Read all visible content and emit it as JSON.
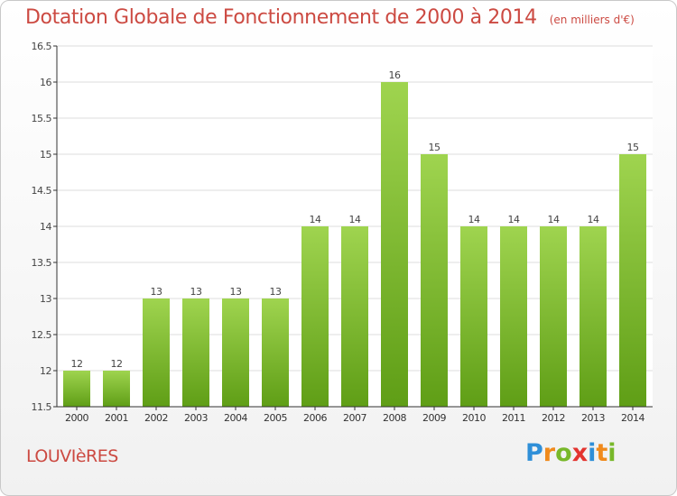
{
  "title": {
    "main": "Dotation Globale de Fonctionnement de 2000 à 2014",
    "unit": "(en milliers d'€)"
  },
  "commune": "LOUVIèRES",
  "logo": {
    "letters": [
      "P",
      "r",
      "o",
      "x",
      "i",
      "t",
      "i"
    ],
    "colors": [
      "#2f8fd8",
      "#f08a1c",
      "#78b82a",
      "#e3342f",
      "#2f8fd8",
      "#f08a1c",
      "#78b82a"
    ]
  },
  "colors": {
    "title": "#cc4a42",
    "bar_top": "#9fd44f",
    "bar_bottom": "#5f9e16",
    "grid": "#dcdcdc",
    "axis": "#333333"
  },
  "chart_data": {
    "type": "bar",
    "title": "Dotation Globale de Fonctionnement de 2000 à 2014",
    "subtitle": "(en milliers d'€)",
    "xlabel": "",
    "ylabel": "",
    "categories": [
      "2000",
      "2001",
      "2002",
      "2003",
      "2004",
      "2005",
      "2006",
      "2007",
      "2008",
      "2009",
      "2010",
      "2011",
      "2012",
      "2013",
      "2014"
    ],
    "values": [
      12,
      12,
      13,
      13,
      13,
      13,
      14,
      14,
      16,
      15,
      14,
      14,
      14,
      14,
      15
    ],
    "data_labels": [
      "12",
      "12",
      "13",
      "13",
      "13",
      "13",
      "14",
      "14",
      "16",
      "15",
      "14",
      "14",
      "14",
      "14",
      "15"
    ],
    "ylim": [
      11.5,
      16.5
    ],
    "yticks": [
      "11.5",
      "12",
      "12.5",
      "13",
      "13.5",
      "14",
      "14.5",
      "15",
      "15.5",
      "16",
      "16.5"
    ],
    "grid": true,
    "legend": "none"
  }
}
